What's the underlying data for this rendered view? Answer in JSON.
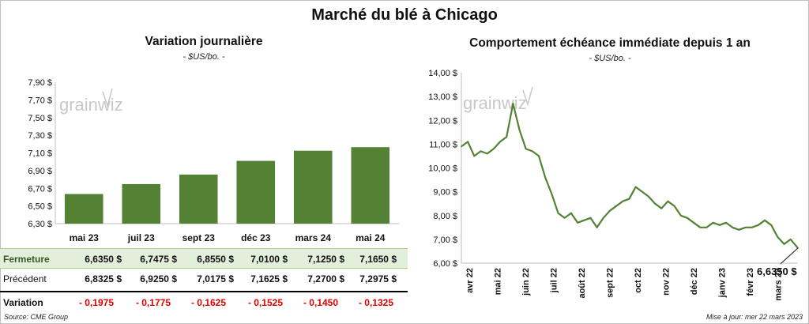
{
  "title": "Marché du blé à Chicago",
  "left_panel": {
    "title": "Variation  journalière",
    "subtitle": "- $US/bo. -",
    "watermark": "grainwiz"
  },
  "right_panel": {
    "title": "Comportement  échéance immédiate depuis 1 an",
    "subtitle": "- $US/bo. -",
    "watermark": "grainwiz",
    "last_value_label": "6,6350 $"
  },
  "table": {
    "row_labels": {
      "close": "Fermeture",
      "previous": "Précédent",
      "variation": "Variation"
    },
    "close_values": [
      "6,6350  $",
      "6,7475  $",
      "6,8550  $",
      "7,0100  $",
      "7,1250  $",
      "7,1650  $"
    ],
    "previous_values": [
      "6,8325  $",
      "6,9250  $",
      "7,0175  $",
      "7,1625  $",
      "7,2700  $",
      "7,2975  $"
    ],
    "variation_values": [
      "- 0,1975",
      "- 0,1775",
      "- 0,1625",
      "- 0,1525",
      "- 0,1450",
      "- 0,1325"
    ]
  },
  "footer": {
    "source": "Source: CME Group",
    "updated": "Mise à jour: mer 22 mars 2023"
  },
  "colors": {
    "bar": "#548235",
    "line": "#548235",
    "negative": "#e00000",
    "close_row_bg": "#e2efda"
  },
  "chart_data": [
    {
      "type": "bar",
      "title": "Variation  journalière",
      "subtitle": "- $US/bo. -",
      "categories": [
        "mai 23",
        "juil 23",
        "sept 23",
        "déc 23",
        "mars 24",
        "mai 24"
      ],
      "values": [
        6.635,
        6.7475,
        6.855,
        7.01,
        7.125,
        7.165
      ],
      "ylim": [
        6.3,
        7.9
      ],
      "yticks": [
        6.3,
        6.5,
        6.7,
        6.9,
        7.1,
        7.3,
        7.5,
        7.7,
        7.9
      ],
      "ytick_labels": [
        "6,30 $",
        "6,50 $",
        "6,70 $",
        "6,90 $",
        "7,10 $",
        "7,30 $",
        "7,50 $",
        "7,70 $",
        "7,90 $"
      ],
      "grid": false
    },
    {
      "type": "line",
      "title": "Comportement  échéance immédiate depuis 1 an",
      "subtitle": "- $US/bo. -",
      "x_labels": [
        "avr 22",
        "mai 22",
        "juin 22",
        "juil 22",
        "août 22",
        "sept 22",
        "oct 22",
        "nov 22",
        "déc 22",
        "janv 23",
        "févr 23",
        "mars 23"
      ],
      "x": [
        "2022-03-22",
        "2022-03-29",
        "2022-04-05",
        "2022-04-12",
        "2022-04-19",
        "2022-04-26",
        "2022-05-03",
        "2022-05-10",
        "2022-05-17",
        "2022-05-24",
        "2022-05-31",
        "2022-06-07",
        "2022-06-14",
        "2022-06-21",
        "2022-06-28",
        "2022-07-05",
        "2022-07-12",
        "2022-07-19",
        "2022-07-26",
        "2022-08-02",
        "2022-08-09",
        "2022-08-16",
        "2022-08-23",
        "2022-08-30",
        "2022-09-06",
        "2022-09-13",
        "2022-09-20",
        "2022-09-27",
        "2022-10-04",
        "2022-10-11",
        "2022-10-18",
        "2022-10-25",
        "2022-11-01",
        "2022-11-08",
        "2022-11-15",
        "2022-11-22",
        "2022-11-29",
        "2022-12-06",
        "2022-12-13",
        "2022-12-20",
        "2022-12-27",
        "2023-01-03",
        "2023-01-10",
        "2023-01-17",
        "2023-01-24",
        "2023-01-31",
        "2023-02-07",
        "2023-02-14",
        "2023-02-21",
        "2023-02-28",
        "2023-03-07",
        "2023-03-14",
        "2023-03-22"
      ],
      "y": [
        10.9,
        11.1,
        10.5,
        10.7,
        10.6,
        10.8,
        11.1,
        11.3,
        12.7,
        11.6,
        10.8,
        10.7,
        10.5,
        9.6,
        8.9,
        8.1,
        7.9,
        8.1,
        7.7,
        7.8,
        7.9,
        7.5,
        7.9,
        8.2,
        8.4,
        8.6,
        8.7,
        9.2,
        9.0,
        8.8,
        8.5,
        8.3,
        8.6,
        8.4,
        8.0,
        7.9,
        7.7,
        7.5,
        7.5,
        7.7,
        7.6,
        7.7,
        7.5,
        7.4,
        7.5,
        7.5,
        7.6,
        7.8,
        7.6,
        7.1,
        6.8,
        7.0,
        6.635
      ],
      "ylim": [
        6.0,
        14.0
      ],
      "yticks": [
        6,
        7,
        8,
        9,
        10,
        11,
        12,
        13,
        14
      ],
      "ytick_labels": [
        "6,00 $",
        "7,00 $",
        "8,00 $",
        "9,00 $",
        "10,00 $",
        "11,00 $",
        "12,00 $",
        "13,00 $",
        "14,00 $"
      ],
      "last_value": 6.635,
      "grid": false
    }
  ]
}
